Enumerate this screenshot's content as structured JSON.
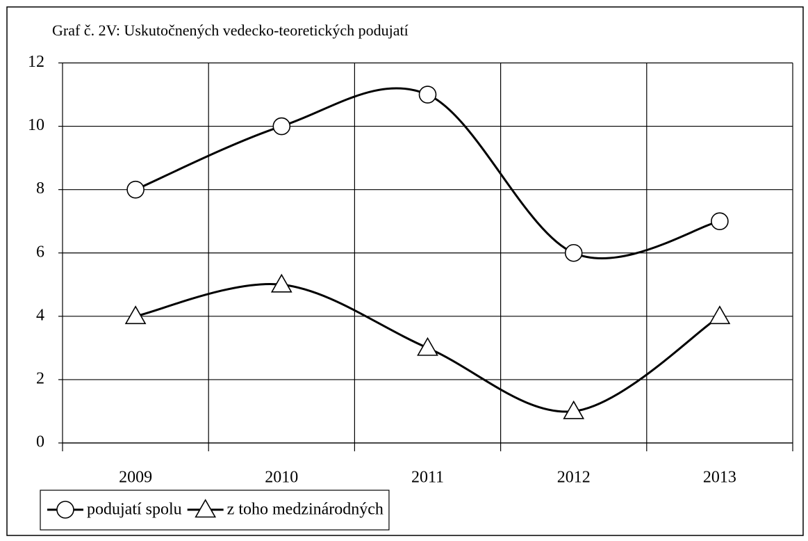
{
  "chart_data": {
    "type": "line",
    "title": "Graf č. 2V: Uskutočnených vedecko-teoretických podujatí",
    "categories": [
      "2009",
      "2010",
      "2011",
      "2012",
      "2013"
    ],
    "series": [
      {
        "name": "podujatí spolu",
        "color": "#000000",
        "marker": "circle",
        "values": [
          8,
          10,
          11,
          6,
          7
        ]
      },
      {
        "name": "z toho medzinárodných",
        "color": "#000000",
        "marker": "triangle",
        "values": [
          4,
          5,
          3,
          1,
          4
        ]
      }
    ],
    "ylim": [
      0,
      12
    ],
    "yticks": [
      0,
      2,
      4,
      6,
      8,
      10,
      12
    ],
    "grid": true,
    "smooth": true,
    "legend": "bottom-left"
  }
}
